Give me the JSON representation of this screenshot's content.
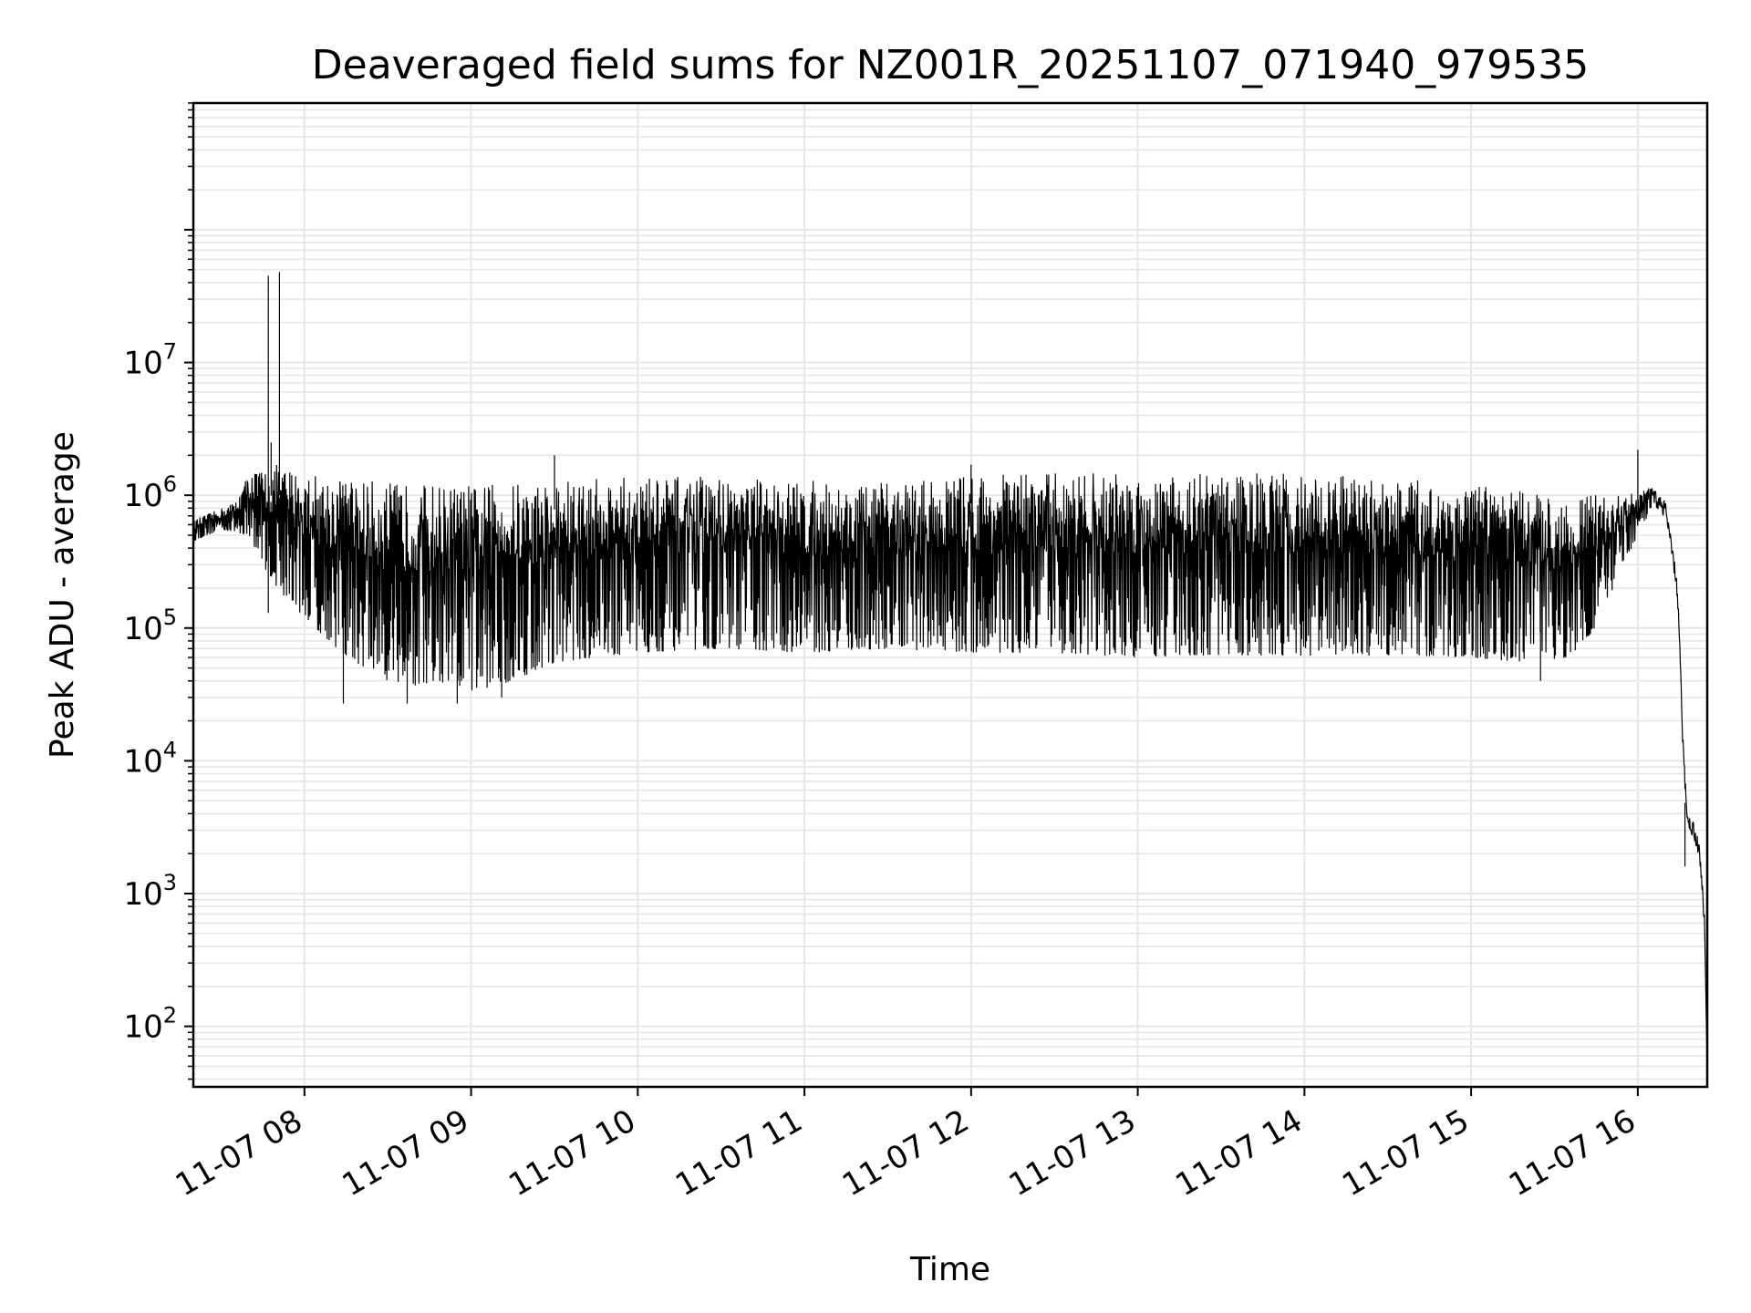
{
  "chart_data": {
    "type": "line",
    "title": "Deaveraged field sums for NZ001R_20251107_071940_979535",
    "xlabel": "Time",
    "ylabel": "Peak ADU - average",
    "y_scale": "log",
    "ylim": [
      35,
      900000000
    ],
    "xlim": [
      "2025-11-07 07:20",
      "2025-11-07 16:25"
    ],
    "grid": true,
    "line_color": "#000000",
    "grid_color": "#e6e6e6",
    "x_ticks": [
      {
        "value": "2025-11-07 08:00",
        "label": "11-07 08"
      },
      {
        "value": "2025-11-07 09:00",
        "label": "11-07 09"
      },
      {
        "value": "2025-11-07 10:00",
        "label": "11-07 10"
      },
      {
        "value": "2025-11-07 11:00",
        "label": "11-07 11"
      },
      {
        "value": "2025-11-07 12:00",
        "label": "11-07 12"
      },
      {
        "value": "2025-11-07 13:00",
        "label": "11-07 13"
      },
      {
        "value": "2025-11-07 14:00",
        "label": "11-07 14"
      },
      {
        "value": "2025-11-07 15:00",
        "label": "11-07 15"
      },
      {
        "value": "2025-11-07 16:00",
        "label": "11-07 16"
      }
    ],
    "y_ticks": [
      {
        "value": 100,
        "base": "10",
        "exp": "2"
      },
      {
        "value": 1000,
        "base": "10",
        "exp": "3"
      },
      {
        "value": 10000,
        "base": "10",
        "exp": "4"
      },
      {
        "value": 100000,
        "base": "10",
        "exp": "5"
      },
      {
        "value": 1000000,
        "base": "10",
        "exp": "6"
      },
      {
        "value": 10000000,
        "base": "10",
        "exp": "7"
      }
    ],
    "series": [
      {
        "upper_envelope": [
          [
            "2025-11-07 07:20",
            650000
          ],
          [
            "2025-11-07 07:30",
            800000
          ],
          [
            "2025-11-07 07:35",
            900000
          ],
          [
            "2025-11-07 07:40",
            1500000
          ],
          [
            "2025-11-07 07:50",
            1700000
          ],
          [
            "2025-11-07 08:00",
            1500000
          ],
          [
            "2025-11-07 08:30",
            1250000
          ],
          [
            "2025-11-07 09:00",
            1200000
          ],
          [
            "2025-11-07 09:30",
            1300000
          ],
          [
            "2025-11-07 10:00",
            1400000
          ],
          [
            "2025-11-07 10:30",
            1400000
          ],
          [
            "2025-11-07 11:00",
            1300000
          ],
          [
            "2025-11-07 11:20",
            1200000
          ],
          [
            "2025-11-07 11:40",
            1300000
          ],
          [
            "2025-11-07 12:00",
            1450000
          ],
          [
            "2025-11-07 12:30",
            1500000
          ],
          [
            "2025-11-07 13:00",
            1500000
          ],
          [
            "2025-11-07 13:30",
            1500000
          ],
          [
            "2025-11-07 14:00",
            1450000
          ],
          [
            "2025-11-07 14:30",
            1350000
          ],
          [
            "2025-11-07 15:00",
            1200000
          ],
          [
            "2025-11-07 15:30",
            1000000
          ],
          [
            "2025-11-07 15:55",
            1000000
          ],
          [
            "2025-11-07 16:05",
            1150000
          ],
          [
            "2025-11-07 16:10",
            900000
          ],
          [
            "2025-11-07 16:14",
            250000
          ],
          [
            "2025-11-07 16:15",
            100000
          ],
          [
            "2025-11-07 16:16",
            20000
          ],
          [
            "2025-11-07 16:17",
            8000
          ],
          [
            "2025-11-07 16:18",
            4000
          ],
          [
            "2025-11-07 16:20",
            3500
          ],
          [
            "2025-11-07 16:22",
            2500
          ],
          [
            "2025-11-07 16:23",
            1500
          ],
          [
            "2025-11-07 16:24",
            700
          ],
          [
            "2025-11-07 16:25",
            60
          ]
        ],
        "lower_envelope": [
          [
            "2025-11-07 07:20",
            450000
          ],
          [
            "2025-11-07 07:30",
            550000
          ],
          [
            "2025-11-07 07:40",
            500000
          ],
          [
            "2025-11-07 07:45",
            300000
          ],
          [
            "2025-11-07 07:50",
            200000
          ],
          [
            "2025-11-07 08:00",
            120000
          ],
          [
            "2025-11-07 08:15",
            60000
          ],
          [
            "2025-11-07 08:30",
            40000
          ],
          [
            "2025-11-07 08:45",
            35000
          ],
          [
            "2025-11-07 09:00",
            33000
          ],
          [
            "2025-11-07 09:15",
            40000
          ],
          [
            "2025-11-07 09:30",
            55000
          ],
          [
            "2025-11-07 10:00",
            65000
          ],
          [
            "2025-11-07 10:30",
            70000
          ],
          [
            "2025-11-07 11:00",
            65000
          ],
          [
            "2025-11-07 11:30",
            70000
          ],
          [
            "2025-11-07 12:00",
            65000
          ],
          [
            "2025-11-07 12:30",
            65000
          ],
          [
            "2025-11-07 13:00",
            60000
          ],
          [
            "2025-11-07 13:30",
            62000
          ],
          [
            "2025-11-07 14:00",
            62000
          ],
          [
            "2025-11-07 14:30",
            62000
          ],
          [
            "2025-11-07 15:00",
            60000
          ],
          [
            "2025-11-07 15:20",
            55000
          ],
          [
            "2025-11-07 15:35",
            60000
          ],
          [
            "2025-11-07 15:45",
            100000
          ],
          [
            "2025-11-07 15:55",
            300000
          ],
          [
            "2025-11-07 16:05",
            800000
          ]
        ],
        "spikes": [
          [
            "2025-11-07 07:47",
            45000000
          ],
          [
            "2025-11-07 07:51",
            48000000
          ],
          [
            "2025-11-07 07:48",
            2500000
          ],
          [
            "2025-11-07 07:47",
            130000
          ],
          [
            "2025-11-07 08:14",
            27000
          ],
          [
            "2025-11-07 08:37",
            27000
          ],
          [
            "2025-11-07 08:55",
            27000
          ],
          [
            "2025-11-07 09:11",
            30000
          ],
          [
            "2025-11-07 09:30",
            2000000
          ],
          [
            "2025-11-07 12:00",
            1700000
          ],
          [
            "2025-11-07 16:00",
            2200000
          ],
          [
            "2025-11-07 15:25",
            40000
          ],
          [
            "2025-11-07 16:17",
            1600
          ]
        ]
      }
    ]
  }
}
